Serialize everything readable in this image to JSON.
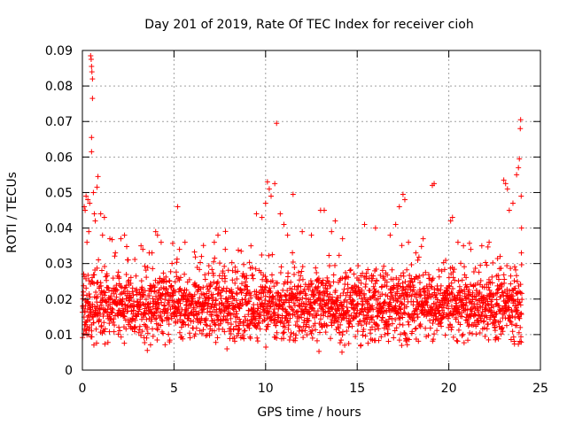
{
  "chart_data": {
    "type": "scatter",
    "title": "Day 201 of 2019, Rate Of TEC Index for receiver cioh",
    "xlabel": "GPS time / hours",
    "ylabel": "ROTI / TECUs",
    "xlim": [
      0,
      25
    ],
    "ylim": [
      0,
      0.09
    ],
    "xticks": [
      0,
      5,
      10,
      15,
      20,
      25
    ],
    "xtick_labels": [
      "0",
      "5",
      "10",
      "15",
      "20",
      "25"
    ],
    "yticks": [
      0,
      0.01,
      0.02,
      0.03,
      0.04,
      0.05,
      0.06,
      0.07,
      0.08,
      0.09
    ],
    "ytick_labels": [
      "0",
      "0.01",
      "0.02",
      "0.03",
      "0.04",
      "0.05",
      "0.06",
      "0.07",
      "0.08",
      "0.09"
    ],
    "grid": true,
    "marker": "+",
    "marker_color": "#ff0000",
    "series": [
      {
        "name": "ROTI",
        "points": [
          [
            0.05,
            0.022
          ],
          [
            0.1,
            0.046
          ],
          [
            0.15,
            0.045
          ],
          [
            0.2,
            0.049
          ],
          [
            0.25,
            0.036
          ],
          [
            0.3,
            0.048
          ],
          [
            0.35,
            0.039
          ],
          [
            0.4,
            0.047
          ],
          [
            0.45,
            0.0885
          ],
          [
            0.48,
            0.0875
          ],
          [
            0.5,
            0.0855
          ],
          [
            0.52,
            0.084
          ],
          [
            0.55,
            0.082
          ],
          [
            0.55,
            0.0765
          ],
          [
            0.5,
            0.0655
          ],
          [
            0.5,
            0.0615
          ],
          [
            0.6,
            0.05
          ],
          [
            0.65,
            0.044
          ],
          [
            0.7,
            0.042
          ],
          [
            0.8,
            0.0515
          ],
          [
            0.85,
            0.0545
          ],
          [
            1.0,
            0.044
          ],
          [
            1.1,
            0.038
          ],
          [
            1.2,
            0.043
          ],
          [
            1.5,
            0.037
          ],
          [
            1.8,
            0.033
          ],
          [
            2.1,
            0.037
          ],
          [
            2.3,
            0.038
          ],
          [
            2.5,
            0.031
          ],
          [
            3.2,
            0.035
          ],
          [
            3.3,
            0.034
          ],
          [
            3.8,
            0.033
          ],
          [
            4.0,
            0.039
          ],
          [
            4.1,
            0.038
          ],
          [
            4.3,
            0.036
          ],
          [
            5.2,
            0.046
          ],
          [
            5.3,
            0.034
          ],
          [
            5.6,
            0.036
          ],
          [
            6.5,
            0.032
          ],
          [
            7.2,
            0.036
          ],
          [
            7.4,
            0.038
          ],
          [
            7.8,
            0.034
          ],
          [
            8.2,
            0.028
          ],
          [
            9.2,
            0.035
          ],
          [
            9.5,
            0.044
          ],
          [
            9.8,
            0.043
          ],
          [
            10.0,
            0.047
          ],
          [
            10.1,
            0.053
          ],
          [
            10.2,
            0.051
          ],
          [
            10.3,
            0.049
          ],
          [
            10.5,
            0.0525
          ],
          [
            10.6,
            0.0695
          ],
          [
            10.8,
            0.044
          ],
          [
            11.0,
            0.041
          ],
          [
            11.2,
            0.038
          ],
          [
            11.5,
            0.0495
          ],
          [
            12.0,
            0.039
          ],
          [
            12.5,
            0.038
          ],
          [
            13.0,
            0.045
          ],
          [
            13.2,
            0.045
          ],
          [
            13.6,
            0.039
          ],
          [
            13.8,
            0.042
          ],
          [
            14.2,
            0.037
          ],
          [
            15.4,
            0.041
          ],
          [
            16.0,
            0.04
          ],
          [
            16.8,
            0.038
          ],
          [
            17.1,
            0.041
          ],
          [
            17.3,
            0.046
          ],
          [
            17.5,
            0.0495
          ],
          [
            17.6,
            0.048
          ],
          [
            17.8,
            0.036
          ],
          [
            18.2,
            0.033
          ],
          [
            18.6,
            0.037
          ],
          [
            19.1,
            0.052
          ],
          [
            19.2,
            0.0525
          ],
          [
            20.1,
            0.042
          ],
          [
            20.2,
            0.043
          ],
          [
            20.5,
            0.036
          ],
          [
            20.8,
            0.035
          ],
          [
            21.2,
            0.034
          ],
          [
            21.8,
            0.035
          ],
          [
            22.2,
            0.036
          ],
          [
            22.8,
            0.032
          ],
          [
            23.0,
            0.0535
          ],
          [
            23.1,
            0.0525
          ],
          [
            23.2,
            0.051
          ],
          [
            23.3,
            0.045
          ],
          [
            23.5,
            0.047
          ],
          [
            23.7,
            0.055
          ],
          [
            23.8,
            0.057
          ],
          [
            23.85,
            0.0595
          ],
          [
            23.9,
            0.068
          ],
          [
            23.92,
            0.0705
          ],
          [
            23.95,
            0.049
          ],
          [
            23.96,
            0.033
          ],
          [
            23.97,
            0.04
          ]
        ]
      }
    ],
    "band_note": "dense cloud of points between ~0.005 and ~0.03 across 0–24 h"
  }
}
